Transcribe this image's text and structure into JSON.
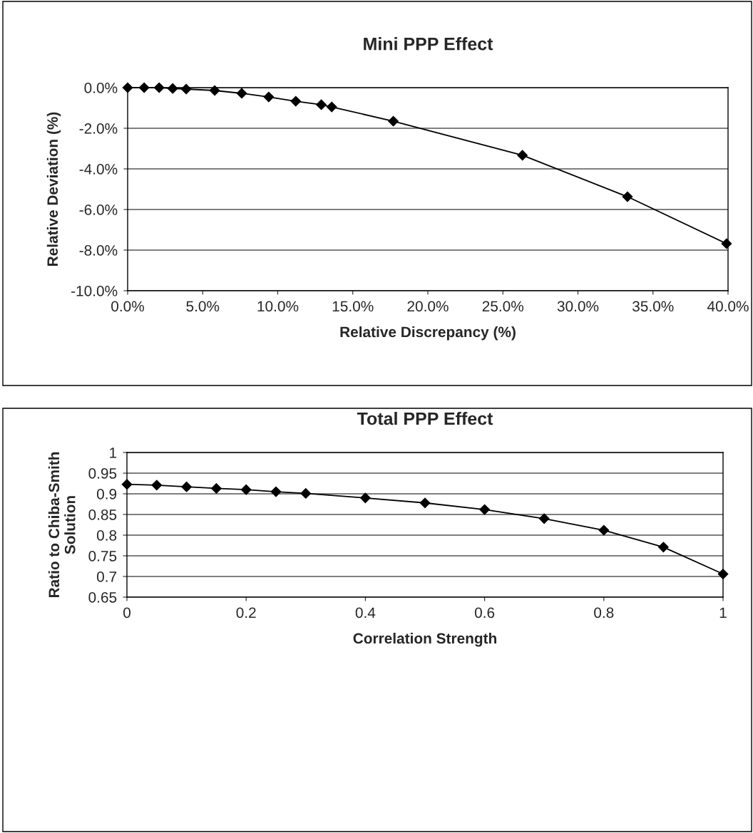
{
  "chart_data": [
    {
      "type": "line",
      "title": "Mini PPP Effect",
      "xlabel": "Relative Discrepancy (%)",
      "ylabel": "Relative Deviation (%)",
      "x": [
        0,
        1.1,
        2.1,
        3.0,
        3.9,
        5.8,
        7.6,
        9.4,
        11.2,
        12.9,
        13.6,
        17.7,
        26.3,
        33.3,
        39.9
      ],
      "series": [
        {
          "color": "#000000",
          "values": [
            0,
            0,
            0,
            -0.04,
            -0.07,
            -0.14,
            -0.28,
            -0.46,
            -0.67,
            -0.84,
            -0.95,
            -1.65,
            -3.33,
            -5.37,
            -7.68
          ]
        }
      ],
      "xlim": [
        0,
        40
      ],
      "xticks": [
        {
          "value": 0,
          "label": "0.0%"
        },
        {
          "value": 5,
          "label": "5.0%"
        },
        {
          "value": 10,
          "label": "10.0%"
        },
        {
          "value": 15,
          "label": "15.0%"
        },
        {
          "value": 20,
          "label": "20.0%"
        },
        {
          "value": 25,
          "label": "25.0%"
        },
        {
          "value": 30,
          "label": "30.0%"
        },
        {
          "value": 35,
          "label": "35.0%"
        },
        {
          "value": 40,
          "label": "40.0%"
        }
      ],
      "ylim": [
        -10,
        0
      ],
      "yticks": [
        {
          "value": -10,
          "label": "-10.0%"
        },
        {
          "value": -8,
          "label": "-8.0%"
        },
        {
          "value": -6,
          "label": "-6.0%"
        },
        {
          "value": -4,
          "label": "-4.0%"
        },
        {
          "value": -2,
          "label": "-2.0%"
        },
        {
          "value": 0,
          "label": "0.0%"
        }
      ],
      "grid": "y",
      "marker": "diamond",
      "line_style": "solid"
    },
    {
      "type": "line",
      "title": "Total PPP Effect",
      "xlabel": "Correlation Strength",
      "ylabel": "Ratio to Chiba-Smith\nSolution",
      "x": [
        0,
        0.05,
        0.1,
        0.15,
        0.2,
        0.25,
        0.3,
        0.4,
        0.5,
        0.6,
        0.7,
        0.8,
        0.9,
        1
      ],
      "series": [
        {
          "color": "#000000",
          "values": [
            0.923,
            0.921,
            0.917,
            0.913,
            0.91,
            0.905,
            0.901,
            0.89,
            0.878,
            0.862,
            0.84,
            0.812,
            0.771,
            0.706
          ]
        }
      ],
      "xlim": [
        0,
        1
      ],
      "xticks": [
        0,
        0.2,
        0.4,
        0.6,
        0.8,
        1
      ],
      "ylim": [
        0.65,
        1
      ],
      "yticks": [
        0.65,
        0.7,
        0.75,
        0.8,
        0.85,
        0.9,
        0.95,
        1
      ],
      "grid": "y",
      "marker": "diamond",
      "line_style": "solid"
    }
  ]
}
